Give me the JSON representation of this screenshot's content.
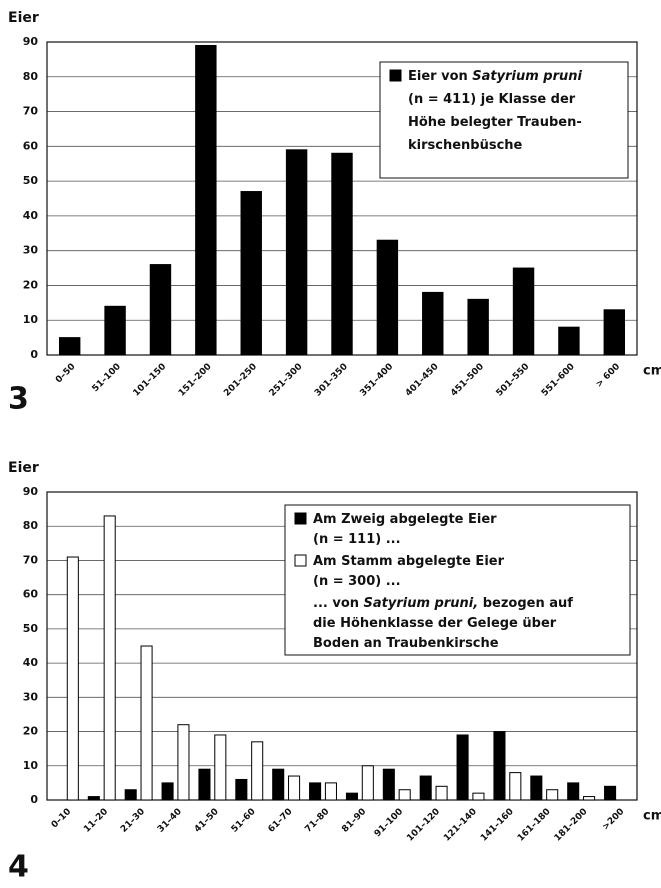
{
  "chart_data": [
    {
      "type": "bar",
      "panel": "3",
      "ylabel": "Eier",
      "xunit": "cm",
      "categories": [
        "0–50",
        "51–100",
        "101–150",
        "151–200",
        "201–250",
        "251–300",
        "301–350",
        "351–400",
        "401–450",
        "451–500",
        "501–550",
        "551–600",
        "> 600"
      ],
      "series": [
        {
          "color": "#000000",
          "legend": [
            [
              {
                "text": "Eier von "
              },
              {
                "text": "Satyrium pruni",
                "italic": true
              }
            ],
            [
              {
                "text": "(n = 411) je Klasse der"
              }
            ],
            [
              {
                "text": "Höhe belegter Trauben-"
              }
            ],
            [
              {
                "text": "kirschenbüsche"
              }
            ]
          ],
          "values": [
            5,
            14,
            26,
            89,
            47,
            59,
            58,
            33,
            18,
            16,
            25,
            8,
            13
          ]
        }
      ],
      "ylim": [
        0,
        90
      ],
      "yticks": [
        0,
        10,
        20,
        30,
        40,
        50,
        60,
        70,
        80,
        90
      ],
      "grid": true
    },
    {
      "type": "bar",
      "panel": "4",
      "ylabel": "Eier",
      "xunit": "cm",
      "categories": [
        "0–10",
        "11–20",
        "21–30",
        "31–40",
        "41–50",
        "51–60",
        "61–70",
        "71–80",
        "81–90",
        "91–100",
        "101–120",
        "121–140",
        "141–160",
        "161–180",
        "181–200",
        ">200"
      ],
      "series": [
        {
          "color": "#000000",
          "legend": [
            [
              {
                "text": "Am Zweig abgelegte Eier"
              }
            ],
            [
              {
                "text": "(n = 111) ..."
              }
            ]
          ],
          "values": [
            0,
            1,
            3,
            5,
            9,
            6,
            9,
            5,
            2,
            9,
            7,
            19,
            20,
            7,
            5,
            4
          ]
        },
        {
          "color": "#ffffff",
          "legend": [
            [
              {
                "text": "Am Stamm abgelegte Eier"
              }
            ],
            [
              {
                "text": "(n = 300) ..."
              }
            ]
          ],
          "values": [
            71,
            83,
            45,
            22,
            19,
            17,
            7,
            5,
            10,
            3,
            4,
            2,
            8,
            3,
            1,
            0
          ]
        }
      ],
      "note": [
        [
          {
            "text": "... von "
          },
          {
            "text": "Satyrium pruni,",
            "italic": true
          },
          {
            "text": " bezogen auf"
          }
        ],
        [
          {
            "text": "die Höhenklasse der Gelege über"
          }
        ],
        [
          {
            "text": "Boden an Traubenkirsche"
          }
        ]
      ],
      "ylim": [
        0,
        90
      ],
      "yticks": [
        0,
        10,
        20,
        30,
        40,
        50,
        60,
        70,
        80,
        90
      ],
      "grid": true
    }
  ]
}
